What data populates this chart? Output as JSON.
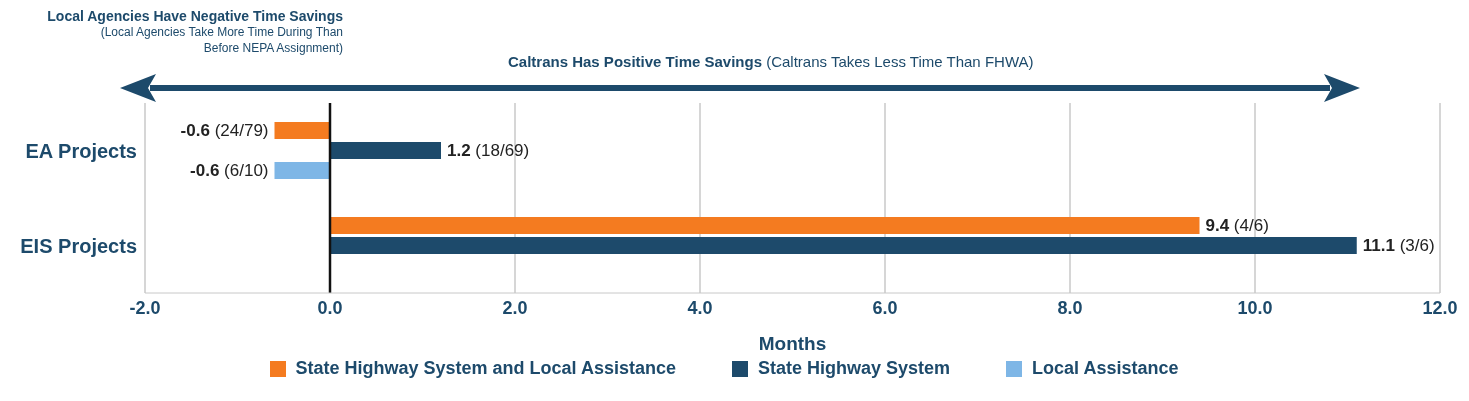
{
  "chart_data": {
    "type": "bar",
    "orientation": "horizontal",
    "categories": [
      "EA Projects",
      "EIS Projects"
    ],
    "series": [
      {
        "name": "State Highway System and Local Assistance",
        "color": "#f47b20",
        "values": [
          -0.6,
          9.4
        ],
        "value_labels": [
          "-0.6 (24/79)",
          "9.4 (4/6)"
        ]
      },
      {
        "name": "State Highway System",
        "color": "#1d4a6b",
        "values": [
          1.2,
          11.1
        ],
        "value_labels": [
          "1.2 (18/69)",
          "11.1 (3/6)"
        ]
      },
      {
        "name": "Local Assistance",
        "color": "#7eb6e6",
        "values": [
          -0.6,
          null
        ],
        "value_labels": [
          "-0.6 (6/10)",
          null
        ]
      }
    ],
    "xlabel": "Months",
    "xlim": [
      -2,
      12
    ],
    "xticks": [
      {
        "value": -2,
        "label": "-2.0"
      },
      {
        "value": 0,
        "label": "0.0"
      },
      {
        "value": 2,
        "label": "2.0"
      },
      {
        "value": 4,
        "label": "4.0"
      },
      {
        "value": 6,
        "label": "6.0"
      },
      {
        "value": 8,
        "label": "8.0"
      },
      {
        "value": 10,
        "label": "10.0"
      },
      {
        "value": 12,
        "label": "12.0"
      }
    ],
    "grid": "x",
    "legend": "bottom",
    "ref_lines": [
      {
        "axis": "x",
        "value": 0,
        "color": "#111111"
      }
    ],
    "annotations": [
      "Local Agencies Have Negative Time Savings",
      "(Local Agencies Take More Time During Than Before NEPA Assignment)",
      "Caltrans Has Positive Time Savings",
      "(Caltrans Takes Less Time Than FHWA)"
    ]
  }
}
